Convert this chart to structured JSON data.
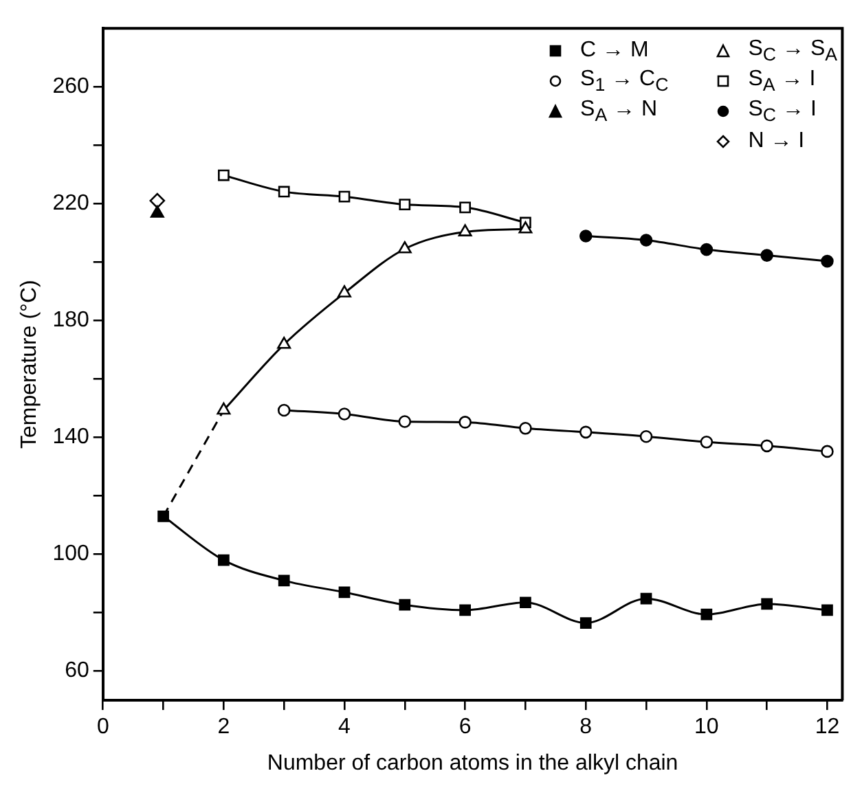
{
  "chart_data": {
    "type": "line",
    "xlabel": "Number of carbon atoms in the alkyl chain",
    "ylabel": "Temperature (°C)",
    "xlim": [
      0,
      12.25
    ],
    "xticks": [
      0,
      {
        "value": 1,
        "label": null
      },
      2,
      {
        "value": 3,
        "label": null
      },
      4,
      {
        "value": 5,
        "label": null
      },
      6,
      {
        "value": 7,
        "label": null
      },
      8,
      {
        "value": 9,
        "label": null
      },
      10,
      {
        "value": 11,
        "label": null
      },
      12
    ],
    "ylim": [
      50,
      280
    ],
    "yticks": [
      60,
      {
        "value": 80,
        "label": null
      },
      100,
      {
        "value": 120,
        "label": null
      },
      140,
      {
        "value": 160,
        "label": null
      },
      180,
      {
        "value": 200,
        "label": null
      },
      220,
      {
        "value": 240,
        "label": null
      },
      260
    ],
    "grid": false,
    "legend": "top right",
    "line_style": "solid",
    "series": [
      {
        "name": "C → M",
        "marker": "square",
        "color": "#000000",
        "x": [
          1,
          2,
          3,
          4,
          5,
          6,
          7,
          8,
          9,
          10,
          11,
          12
        ],
        "values": [
          113,
          98,
          91,
          87,
          82.7,
          80.9,
          83.5,
          76.5,
          84.8,
          79.4,
          83,
          80.9
        ]
      },
      {
        "name": "S$_{1}$ → C$_{C}$",
        "marker": "circle",
        "color": "#000000",
        "colors": [
          "#ffffff",
          "#ffffff",
          "#ffffff",
          "#ffffff",
          "#ffffff",
          "#ffffff",
          "#ffffff",
          "#ffffff",
          "#ffffff",
          "#ffffff"
        ],
        "x": [
          3,
          4,
          5,
          6,
          7,
          8,
          9,
          10,
          11,
          12
        ],
        "values": [
          149.3,
          148,
          145.4,
          145.2,
          143.1,
          141.8,
          140.3,
          138.4,
          137.1,
          135.2
        ]
      },
      {
        "name": "S$_{A}$ → N",
        "type": "scatter",
        "marker": "triangle",
        "color": "#000000",
        "x": [
          0.9
        ],
        "values": [
          216.7
        ]
      },
      {
        "name": "S$_{C}$ → S$_{A}$",
        "marker": "triangle",
        "color": "#000000",
        "colors": [
          "#ffffff",
          "#ffffff",
          "#ffffff",
          "#ffffff",
          "#ffffff",
          "#ffffff"
        ],
        "x": [
          2,
          3,
          4,
          5,
          6,
          7
        ],
        "values": [
          149.3,
          171.8,
          189.4,
          204.5,
          210.3,
          211.3
        ]
      },
      {
        "name": "S$_{A}$ → I",
        "marker": "square",
        "color": "#000000",
        "colors": [
          "#ffffff",
          "#ffffff",
          "#ffffff",
          "#ffffff",
          "#ffffff",
          "#ffffff"
        ],
        "x": [
          2,
          3,
          4,
          5,
          6,
          7
        ],
        "values": [
          229.7,
          224.1,
          222.4,
          219.7,
          218.7,
          213.5
        ]
      },
      {
        "name": "S$_{C}$ → I",
        "marker": "circle",
        "color": "#000000",
        "x": [
          8,
          9,
          10,
          11,
          12
        ],
        "values": [
          208.9,
          207.5,
          204.3,
          202.3,
          200.3
        ]
      },
      {
        "name": "N → I",
        "type": "scatter",
        "marker": "diamond",
        "color": "#000000",
        "colors": [
          "#ffffff"
        ],
        "x": [
          0.9
        ],
        "values": [
          221
        ]
      },
      {
        "marker": "none",
        "line_style": "dashed",
        "color": "#000000",
        "x": [
          1,
          2
        ],
        "values": [
          113,
          149.3
        ]
      }
    ]
  }
}
